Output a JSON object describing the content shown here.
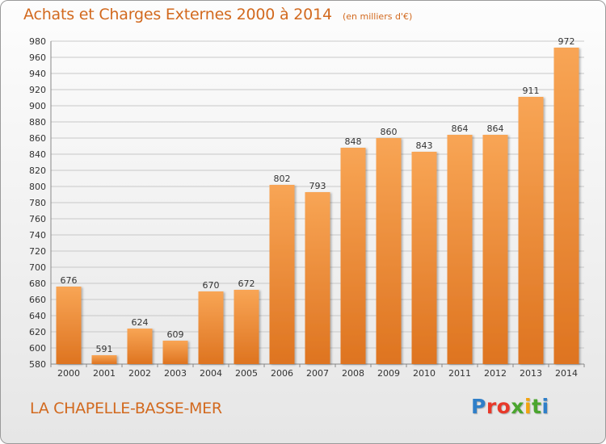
{
  "header": {
    "title": "Achats et Charges Externes 2000 à 2014",
    "subtitle": "(en milliers d'€)"
  },
  "footer": {
    "place": "LA CHAPELLE-BASSE-MER",
    "logo_letters": [
      "P",
      "r",
      "o",
      "x",
      "i",
      "t",
      "i"
    ],
    "logo_colors": [
      "#2f7fc8",
      "#e8392a",
      "#e8392a",
      "#4aa52e",
      "#f2a30f",
      "#4aa52e",
      "#2f7fc8"
    ]
  },
  "colors": {
    "bar_top": "#f8a555",
    "bar_bottom": "#de7420",
    "text": "#d2691e"
  },
  "chart_data": {
    "type": "bar",
    "title": "Achats et Charges Externes 2000 à 2014",
    "subtitle": "(en milliers d'€)",
    "xlabel": "",
    "ylabel": "",
    "categories": [
      "2000",
      "2001",
      "2002",
      "2003",
      "2004",
      "2005",
      "2006",
      "2007",
      "2008",
      "2009",
      "2010",
      "2011",
      "2012",
      "2013",
      "2014"
    ],
    "values": [
      676,
      591,
      624,
      609,
      670,
      672,
      802,
      793,
      848,
      860,
      843,
      864,
      864,
      911,
      972
    ],
    "ylim": [
      580,
      980
    ],
    "yticks": [
      580,
      600,
      620,
      640,
      660,
      680,
      700,
      720,
      740,
      760,
      780,
      800,
      820,
      840,
      860,
      880,
      900,
      920,
      940,
      960,
      980
    ],
    "grid": true,
    "legend": "none"
  }
}
